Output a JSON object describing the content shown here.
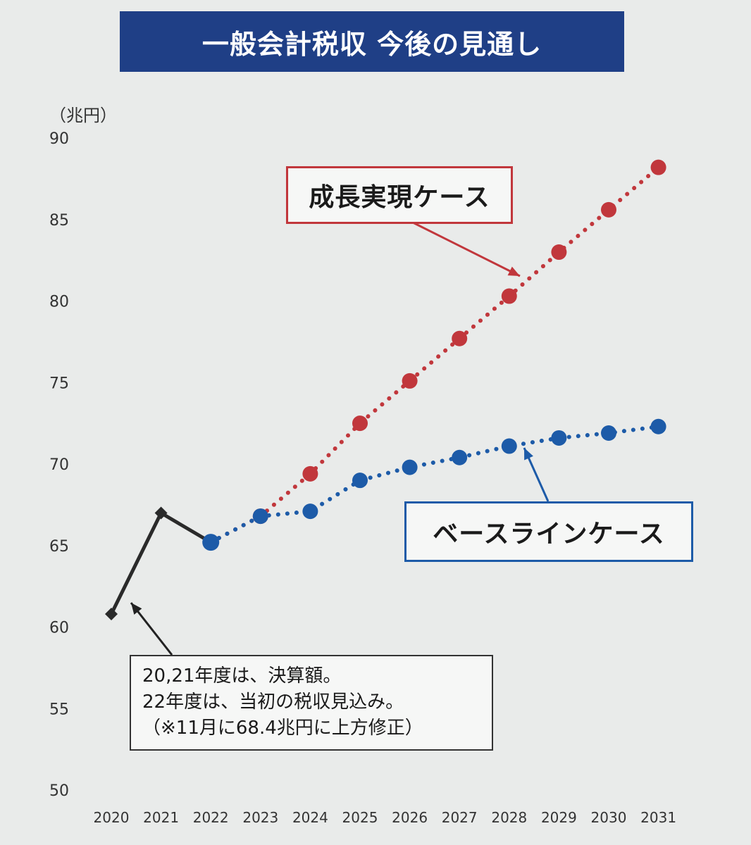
{
  "chart_data": {
    "type": "line",
    "title": "一般会計税収 今後の見通し",
    "ylabel": "（兆円）",
    "xlabel": "",
    "x": [
      "2020",
      "2021",
      "2022",
      "2023",
      "2024",
      "2025",
      "2026",
      "2027",
      "2028",
      "2029",
      "2030",
      "2031"
    ],
    "y_ticks": [
      "90",
      "85",
      "80",
      "75",
      "70",
      "65",
      "60",
      "55",
      "50"
    ],
    "ylim": [
      50,
      90
    ],
    "grid": false,
    "series": [
      {
        "name": "",
        "style": "solid",
        "color": "#2a2a2a",
        "values": [
          60.8,
          67.0,
          65.2,
          null,
          null,
          null,
          null,
          null,
          null,
          null,
          null,
          null
        ]
      },
      {
        "name": "成長実現ケース",
        "style": "dotted",
        "color": "#c1373c",
        "values": [
          null,
          null,
          65.2,
          66.8,
          69.4,
          72.5,
          75.1,
          77.7,
          80.3,
          83.0,
          85.6,
          88.2
        ]
      },
      {
        "name": "ベースラインケース",
        "style": "dotted",
        "color": "#1d5ba8",
        "values": [
          null,
          null,
          65.2,
          66.8,
          67.1,
          69.0,
          69.8,
          70.4,
          71.1,
          71.6,
          71.9,
          72.3
        ]
      }
    ],
    "annotations": {
      "growth_label": "成長実現ケース",
      "baseline_label": "ベースラインケース",
      "note_lines": [
        "20,21年度は、決算額。",
        "22年度は、当初の税収見込み。",
        "（※11月に68.4兆円に上方修正）"
      ]
    }
  }
}
